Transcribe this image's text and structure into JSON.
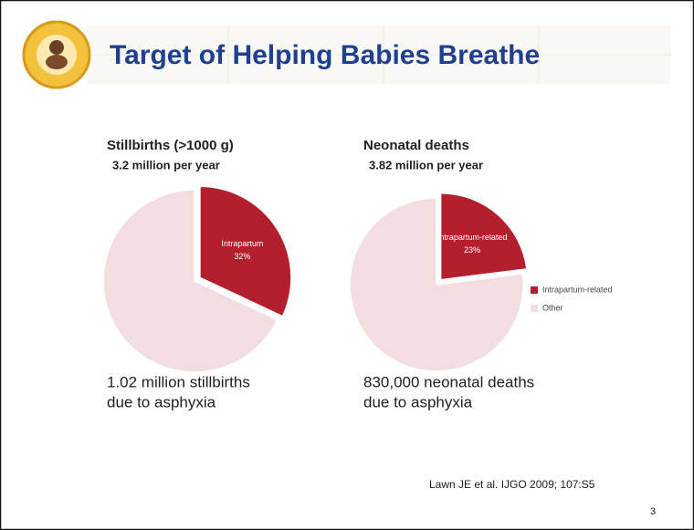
{
  "slide": {
    "title": "Target of Helping Babies Breathe",
    "citation": "Lawn JE et al. IJGO 2009; 107:S5",
    "page_number": "3"
  },
  "chart_data": [
    {
      "type": "pie",
      "title": "Stillbirths (>1000 g)",
      "subtitle": "3.2 million per year",
      "categories": [
        "Intrapartum",
        null
      ],
      "values": [
        32,
        68
      ],
      "value_labels": [
        "32%",
        null
      ],
      "colors": [
        "#b41f2d",
        "#f3dde0"
      ],
      "legend": false,
      "annotation": [
        "1.02 million stillbirths",
        "due to asphyxia"
      ]
    },
    {
      "type": "pie",
      "title": "Neonatal deaths",
      "subtitle": "3.82 million per year",
      "categories": [
        "Intrapartum-related",
        "Other"
      ],
      "values": [
        23,
        77
      ],
      "value_labels": [
        "23%",
        null
      ],
      "colors": [
        "#b41f2d",
        "#f3dde0"
      ],
      "legend": true,
      "legend_position": "right",
      "annotation": [
        "830,000 neonatal deaths",
        "due to asphyxia"
      ]
    }
  ]
}
